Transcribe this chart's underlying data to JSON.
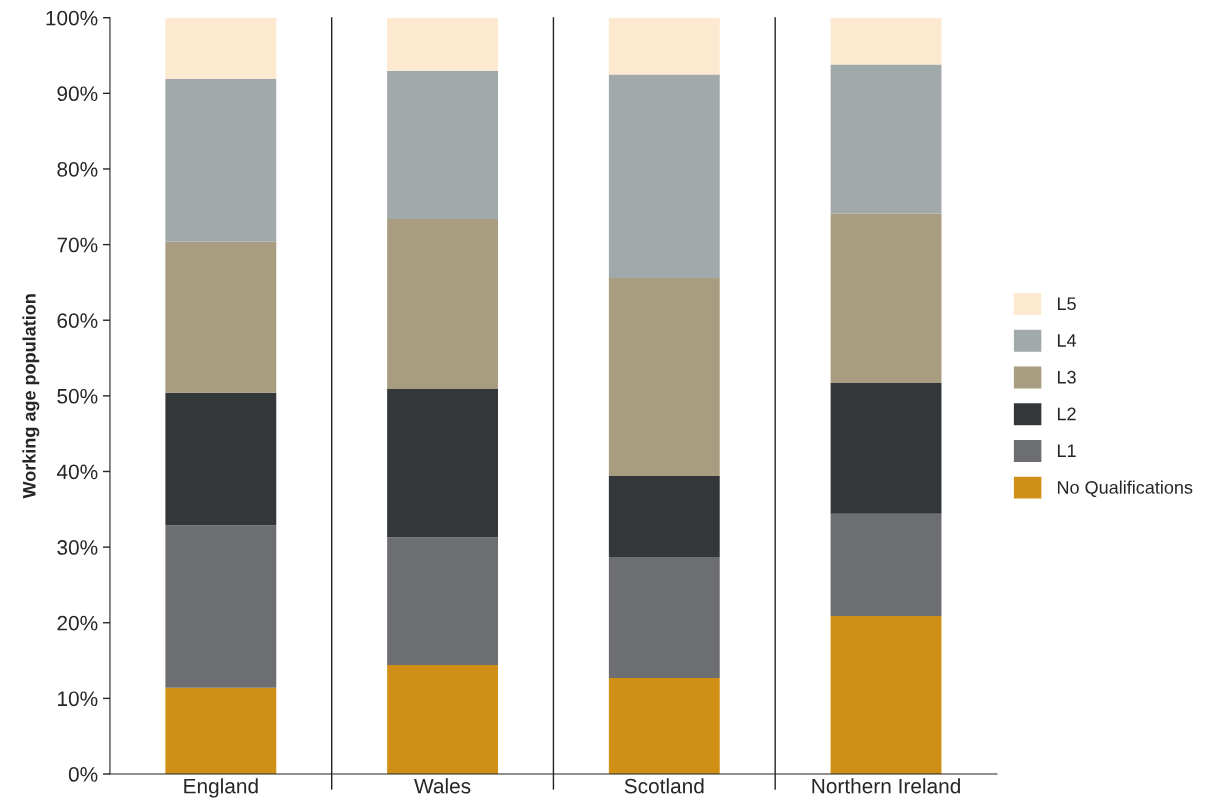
{
  "chart_data": {
    "type": "bar",
    "stacked": true,
    "ylabel": "Working age population",
    "categories": [
      "England",
      "Wales",
      "Scotland",
      "Northern Ireland"
    ],
    "series": [
      {
        "name": "No Qualifications",
        "color": "#d09015",
        "values": [
          11.4,
          14.4,
          12.7,
          20.9
        ]
      },
      {
        "name": "L1",
        "color": "#6d6e71",
        "values": [
          21.5,
          16.9,
          16.0,
          13.5
        ]
      },
      {
        "name": "L2",
        "color": "#333739",
        "values": [
          17.5,
          19.6,
          10.7,
          17.3
        ]
      },
      {
        "name": "L3",
        "color": "#a89d80",
        "values": [
          20.0,
          22.5,
          26.2,
          22.4
        ]
      },
      {
        "name": "L4",
        "color": "#a2a9ab",
        "values": [
          21.5,
          19.6,
          26.9,
          19.7
        ]
      },
      {
        "name": "L5",
        "color": "#fde8d0",
        "values": [
          8.1,
          7.0,
          7.5,
          6.2
        ]
      }
    ],
    "ylim": [
      0,
      100
    ],
    "yticks": [
      {
        "value": 0,
        "label": "0%"
      },
      {
        "value": 10,
        "label": "10%"
      },
      {
        "value": 20,
        "label": "20%"
      },
      {
        "value": 30,
        "label": "30%"
      },
      {
        "value": 40,
        "label": "40%"
      },
      {
        "value": 50,
        "label": "50%"
      },
      {
        "value": 60,
        "label": "60%"
      },
      {
        "value": 70,
        "label": "70%"
      },
      {
        "value": 80,
        "label": "80%"
      },
      {
        "value": 90,
        "label": "90%"
      },
      {
        "value": 100,
        "label": "100%"
      }
    ],
    "grid": "x",
    "legend": "right"
  }
}
